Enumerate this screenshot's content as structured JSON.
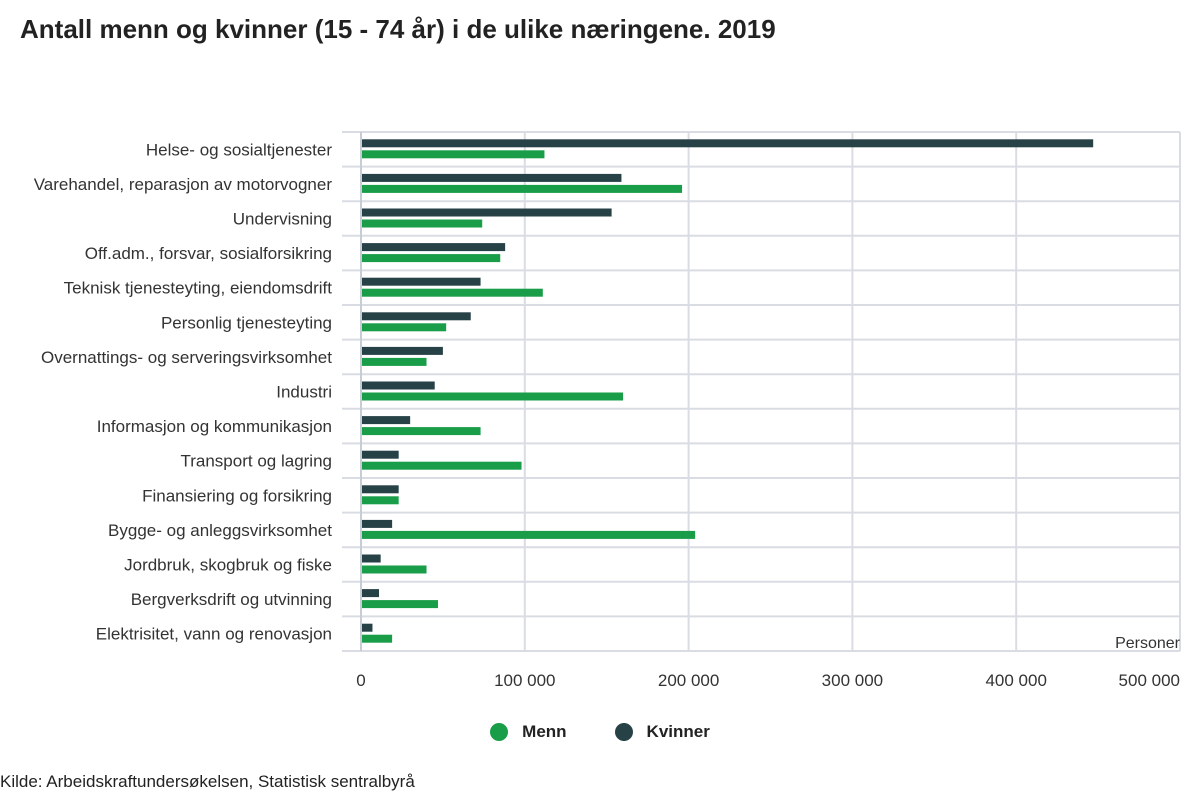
{
  "title": "Antall menn og kvinner (15 - 74 år) i de ulike næringene. 2019",
  "source": "Kilde: Arbeidskraftundersøkelsen, Statistisk sentralbyrå",
  "colors": {
    "menn": "#1a9d49",
    "kvinner": "#274247",
    "grid": "#d9dde3"
  },
  "chart_data": {
    "type": "bar",
    "orientation": "horizontal",
    "title": "Antall menn og kvinner (15 - 74 år) i de ulike næringene. 2019",
    "xlabel": "Personer",
    "ylabel": "",
    "xlim": [
      0,
      500000
    ],
    "x_ticks": [
      0,
      100000,
      200000,
      300000,
      400000,
      500000
    ],
    "x_tick_labels": [
      "0",
      "100 000",
      "200 000",
      "300 000",
      "400 000",
      "500 000"
    ],
    "grid": true,
    "legend_position": "bottom",
    "categories": [
      "Helse- og sosialtjenester",
      "Varehandel, reparasjon av motorvogner",
      "Undervisning",
      "Off.adm., forsvar, sosialforsikring",
      "Teknisk tjenesteyting, eiendomsdrift",
      "Personlig tjenesteyting",
      "Overnattings- og serveringsvirksomhet",
      "Industri",
      "Informasjon og kommunikasjon",
      "Transport og lagring",
      "Finansiering og forsikring",
      "Bygge- og anleggsvirksomhet",
      "Jordbruk, skogbruk og fiske",
      "Bergverksdrift og utvinning",
      "Elektrisitet, vann og renovasjon"
    ],
    "series": [
      {
        "name": "Kvinner",
        "values": [
          447000,
          159000,
          153000,
          88000,
          73000,
          67000,
          50000,
          45000,
          30000,
          23000,
          23000,
          19000,
          12000,
          11000,
          7000
        ]
      },
      {
        "name": "Menn",
        "values": [
          112000,
          196000,
          74000,
          85000,
          111000,
          52000,
          40000,
          160000,
          73000,
          98000,
          23000,
          204000,
          40000,
          47000,
          19000
        ]
      }
    ]
  }
}
